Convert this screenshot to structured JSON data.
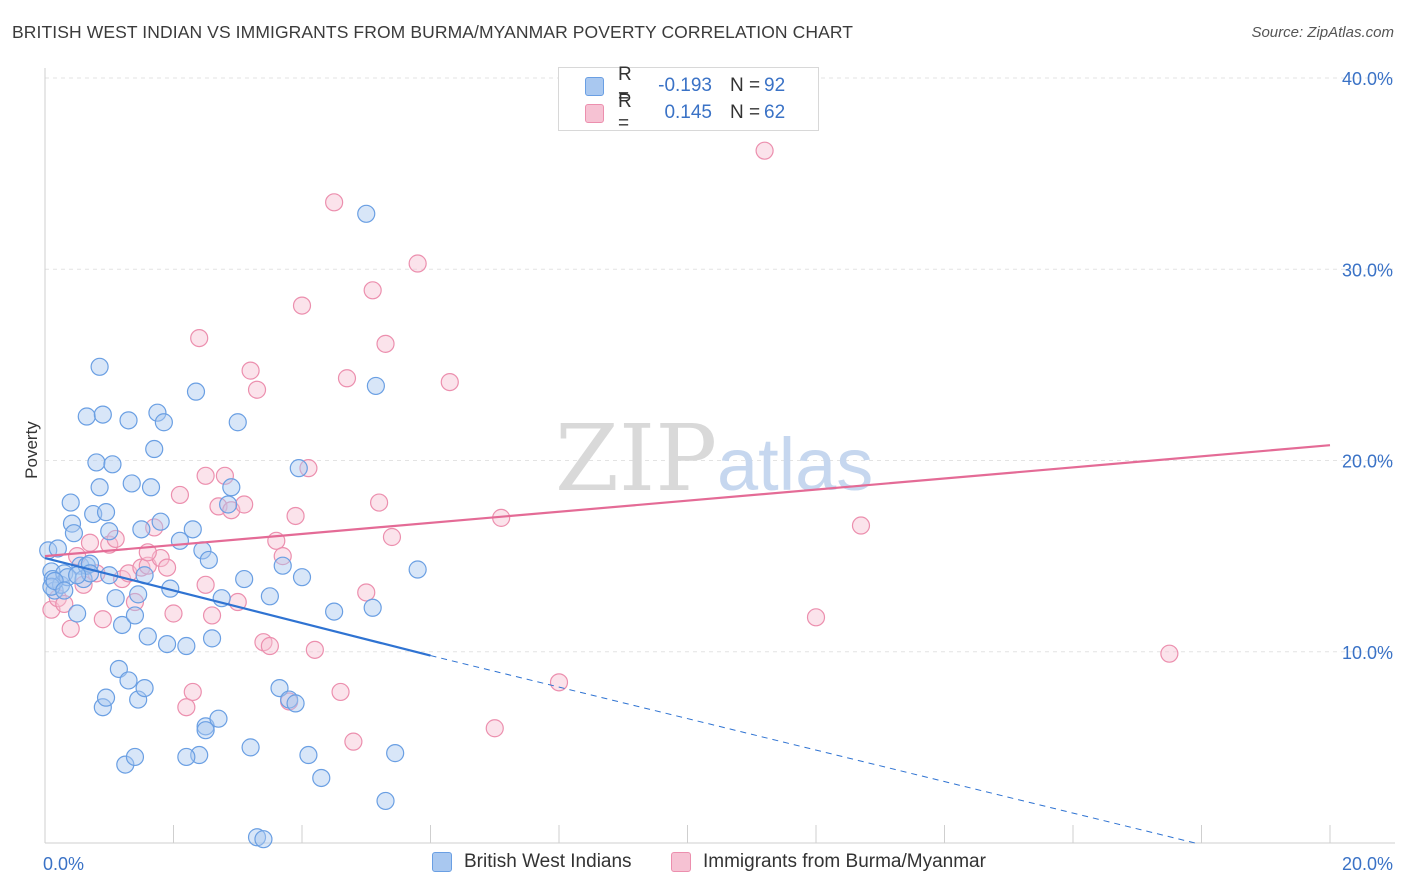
{
  "title": "BRITISH WEST INDIAN VS IMMIGRANTS FROM BURMA/MYANMAR POVERTY CORRELATION CHART",
  "source": "Source: ZipAtlas.com",
  "watermark": "ZIPatlas",
  "colors": {
    "blue": "#6a9fe3",
    "blue_fill": "#a9c8f0",
    "blue_line": "#2f73d2",
    "pink": "#ec8fae",
    "pink_fill": "#f6c2d3",
    "pink_line": "#e46b96",
    "axis_text": "#3a72c6"
  },
  "legend_top": {
    "row1": {
      "r_label": "R =",
      "r_value": "-0.193",
      "n_label": "N =",
      "n_value": "92"
    },
    "row2": {
      "r_label": "R =",
      "r_value": "0.145",
      "n_label": "N =",
      "n_value": "62"
    }
  },
  "chart_data": {
    "type": "scatter",
    "title": "BRITISH WEST INDIAN VS IMMIGRANTS FROM BURMA/MYANMAR POVERTY CORRELATION CHART",
    "ylabel": "Poverty",
    "xlabel": "",
    "xlim": [
      0,
      20
    ],
    "ylim": [
      0,
      40
    ],
    "x_tick_labels": [
      "0.0%",
      "20.0%"
    ],
    "y_tick_labels": [
      "10.0%",
      "20.0%",
      "30.0%",
      "40.0%"
    ],
    "y_ticks": [
      10,
      20,
      30,
      40
    ],
    "grid": true,
    "legend_position": "bottom",
    "series": [
      {
        "name": "British West Indians",
        "color": "#6a9fe3",
        "trend": {
          "x": [
            0,
            6.0
          ],
          "y": [
            14.9,
            9.8
          ],
          "dashed_to": [
            17.9,
            0
          ]
        },
        "points": [
          [
            0.05,
            15.3
          ],
          [
            0.1,
            14.2
          ],
          [
            0.12,
            13.8
          ],
          [
            0.15,
            13.2
          ],
          [
            0.2,
            15.4
          ],
          [
            0.25,
            13.5
          ],
          [
            0.3,
            14.1
          ],
          [
            0.35,
            13.9
          ],
          [
            0.4,
            17.8
          ],
          [
            0.42,
            16.7
          ],
          [
            0.45,
            16.2
          ],
          [
            0.5,
            12.0
          ],
          [
            0.55,
            14.5
          ],
          [
            0.6,
            13.8
          ],
          [
            0.65,
            14.5
          ],
          [
            0.7,
            14.6
          ],
          [
            0.75,
            17.2
          ],
          [
            0.65,
            22.3
          ],
          [
            0.7,
            14.1
          ],
          [
            0.8,
            19.9
          ],
          [
            0.85,
            18.6
          ],
          [
            0.9,
            22.4
          ],
          [
            0.95,
            17.3
          ],
          [
            1.0,
            16.3
          ],
          [
            1.05,
            19.8
          ],
          [
            0.85,
            24.9
          ],
          [
            0.9,
            7.1
          ],
          [
            0.95,
            7.6
          ],
          [
            1.0,
            14.0
          ],
          [
            1.1,
            12.8
          ],
          [
            1.2,
            11.4
          ],
          [
            1.15,
            9.1
          ],
          [
            1.25,
            4.1
          ],
          [
            1.3,
            22.1
          ],
          [
            1.35,
            18.8
          ],
          [
            1.4,
            11.9
          ],
          [
            1.45,
            13.0
          ],
          [
            1.5,
            16.4
          ],
          [
            1.55,
            14.0
          ],
          [
            1.3,
            8.5
          ],
          [
            1.4,
            4.5
          ],
          [
            1.45,
            7.5
          ],
          [
            1.55,
            8.1
          ],
          [
            1.6,
            10.8
          ],
          [
            1.65,
            18.6
          ],
          [
            1.7,
            20.6
          ],
          [
            1.75,
            22.5
          ],
          [
            1.8,
            16.8
          ],
          [
            1.85,
            22.0
          ],
          [
            1.9,
            10.4
          ],
          [
            1.95,
            13.3
          ],
          [
            2.1,
            15.8
          ],
          [
            2.2,
            10.3
          ],
          [
            2.3,
            16.4
          ],
          [
            2.35,
            23.6
          ],
          [
            2.4,
            4.6
          ],
          [
            2.45,
            15.3
          ],
          [
            2.5,
            6.1
          ],
          [
            2.55,
            14.8
          ],
          [
            2.2,
            4.5
          ],
          [
            2.5,
            5.9
          ],
          [
            2.6,
            10.7
          ],
          [
            2.7,
            6.5
          ],
          [
            2.75,
            12.8
          ],
          [
            2.85,
            17.7
          ],
          [
            2.9,
            18.6
          ],
          [
            3.0,
            22.0
          ],
          [
            3.1,
            13.8
          ],
          [
            3.2,
            5.0
          ],
          [
            3.3,
            0.3
          ],
          [
            3.4,
            0.2
          ],
          [
            3.5,
            12.9
          ],
          [
            3.65,
            8.1
          ],
          [
            3.7,
            14.5
          ],
          [
            3.8,
            7.5
          ],
          [
            3.9,
            7.3
          ],
          [
            4.0,
            13.9
          ],
          [
            3.95,
            19.6
          ],
          [
            4.1,
            4.6
          ],
          [
            4.3,
            3.4
          ],
          [
            4.5,
            12.1
          ],
          [
            5.0,
            32.9
          ],
          [
            5.1,
            12.3
          ],
          [
            5.15,
            23.9
          ],
          [
            5.3,
            2.2
          ],
          [
            5.45,
            4.7
          ],
          [
            5.8,
            14.3
          ],
          [
            0.1,
            13.4
          ],
          [
            0.15,
            13.7
          ],
          [
            0.3,
            13.2
          ],
          [
            0.5,
            14.0
          ]
        ],
        "r": "-0.193",
        "n": "92"
      },
      {
        "name": "Immigrants from Burma/Myanmar",
        "color": "#ec8fae",
        "trend": {
          "x": [
            0,
            20
          ],
          "y": [
            15.0,
            20.8
          ]
        },
        "points": [
          [
            0.1,
            12.2
          ],
          [
            0.2,
            12.8
          ],
          [
            0.3,
            12.5
          ],
          [
            0.4,
            11.2
          ],
          [
            0.5,
            15.0
          ],
          [
            0.6,
            13.5
          ],
          [
            0.7,
            15.7
          ],
          [
            0.8,
            14.1
          ],
          [
            0.9,
            11.7
          ],
          [
            1.0,
            15.6
          ],
          [
            1.1,
            15.9
          ],
          [
            1.2,
            13.8
          ],
          [
            1.3,
            14.1
          ],
          [
            1.4,
            12.6
          ],
          [
            1.5,
            14.4
          ],
          [
            1.6,
            14.5
          ],
          [
            1.7,
            16.5
          ],
          [
            1.8,
            14.9
          ],
          [
            1.9,
            14.4
          ],
          [
            2.0,
            12.0
          ],
          [
            2.1,
            18.2
          ],
          [
            2.2,
            7.1
          ],
          [
            2.3,
            7.9
          ],
          [
            2.4,
            26.4
          ],
          [
            2.5,
            13.5
          ],
          [
            2.5,
            19.2
          ],
          [
            2.6,
            11.9
          ],
          [
            2.7,
            17.6
          ],
          [
            2.8,
            19.2
          ],
          [
            2.9,
            17.4
          ],
          [
            3.0,
            12.6
          ],
          [
            3.1,
            17.7
          ],
          [
            3.2,
            24.7
          ],
          [
            3.3,
            23.7
          ],
          [
            3.4,
            10.5
          ],
          [
            3.5,
            10.3
          ],
          [
            3.6,
            15.8
          ],
          [
            3.7,
            15.0
          ],
          [
            3.8,
            7.4
          ],
          [
            3.9,
            17.1
          ],
          [
            4.0,
            28.1
          ],
          [
            4.1,
            19.6
          ],
          [
            4.2,
            10.1
          ],
          [
            4.5,
            33.5
          ],
          [
            4.6,
            7.9
          ],
          [
            4.7,
            24.3
          ],
          [
            4.8,
            5.3
          ],
          [
            5.0,
            13.1
          ],
          [
            5.1,
            28.9
          ],
          [
            5.2,
            17.8
          ],
          [
            5.3,
            26.1
          ],
          [
            5.4,
            16.0
          ],
          [
            5.8,
            30.3
          ],
          [
            6.3,
            24.1
          ],
          [
            7.0,
            6.0
          ],
          [
            7.1,
            17.0
          ],
          [
            8.0,
            8.4
          ],
          [
            11.2,
            36.2
          ],
          [
            12.0,
            11.8
          ],
          [
            12.7,
            16.6
          ],
          [
            17.5,
            9.9
          ],
          [
            1.6,
            15.2
          ]
        ],
        "r": "0.145",
        "n": "62"
      }
    ]
  }
}
